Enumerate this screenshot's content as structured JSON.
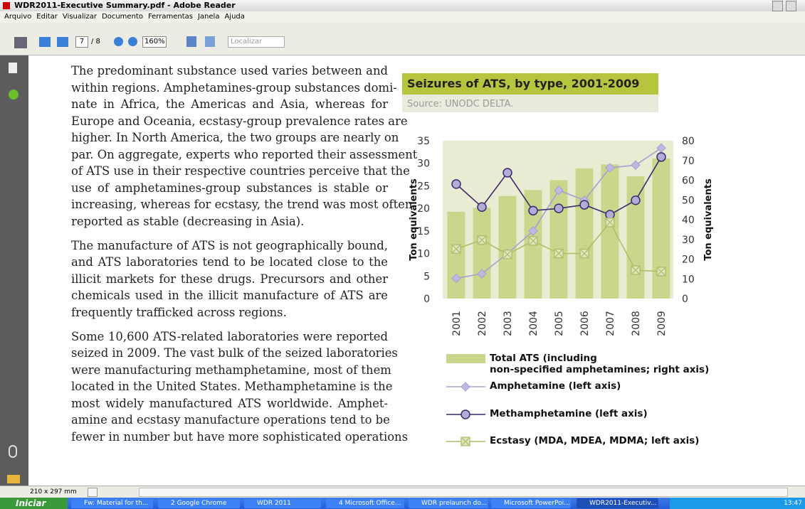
{
  "window": {
    "title": "WDR2011-Executive Summary.pdf - Adobe Reader",
    "menu": [
      "Arquivo",
      "Editar",
      "Visualizar",
      "Documento",
      "Ferramentas",
      "Janela",
      "Ajuda"
    ],
    "toolbar": {
      "page": "7",
      "page_count": "/ 8",
      "zoom": "160%",
      "search": "Localizar"
    },
    "status": "210 x 297 mm",
    "taskbar": {
      "start": "Iniciar",
      "items": [
        "Fw: Material for th...",
        "2 Google Chrome",
        "WDR 2011",
        "4 Microsoft Office...",
        "WDR prelaunch do...",
        "Microsoft PowerPoi...",
        "WDR2011-Executiv..."
      ],
      "clock": "13:47"
    }
  },
  "document": {
    "paragraphs": [
      [
        "The predominant substance used varies between and",
        "within regions. Amphetamines-group substances domi-",
        "nate in Africa, the Americas and Asia, whereas for",
        "Europe and Oceania, ecstasy-group prevalence rates are",
        "higher. In North America, the two groups are nearly on",
        "par. On aggregate, experts who reported their assessment",
        "of ATS use in their respective countries perceive that the",
        "use of amphetamines-group substances is stable or",
        "increasing, whereas for ecstasy, the trend was most often",
        "reported as stable (decreasing in Asia)."
      ],
      [
        "The manufacture of ATS is not geographically bound,",
        "and ATS laboratories tend to be located close to the",
        "illicit markets for these drugs. Precursors and other",
        "chemicals used in the illicit manufacture of ATS are",
        "frequently trafficked across regions."
      ],
      [
        "Some 10,600 ATS-related laboratories were reported",
        "seized in 2009. The vast bulk of the seized laboratories",
        "were manufacturing methamphetamine, most of them",
        "located in the United States. Methamphetamine is the",
        "most widely manufactured ATS worldwide. Amphet-",
        "amine and ecstasy manufacture operations tend to be",
        "fewer in number but have more sophisticated operations"
      ]
    ]
  },
  "chart_data": {
    "type": "bar",
    "title": "Seizures of ATS, by type, 2001-2009",
    "subtitle": "Source: UNODC DELTA.",
    "categories": [
      "2001",
      "2002",
      "2003",
      "2004",
      "2005",
      "2006",
      "2007",
      "2008",
      "2009"
    ],
    "y_label": "Ton equivalents",
    "y2_label": "Ton equivalents",
    "ylim": [
      0,
      35
    ],
    "yticks": [
      0,
      5,
      10,
      15,
      20,
      25,
      30,
      35
    ],
    "y2lim": [
      0,
      80
    ],
    "y2ticks": [
      0,
      10,
      20,
      30,
      40,
      50,
      60,
      70,
      80
    ],
    "series": [
      {
        "name": "Total ATS (including\nnon-specified amphetamines; right axis)",
        "type": "bar",
        "axis": "y2",
        "color": "#c8d78c",
        "values": [
          44,
          46,
          52,
          55,
          60,
          66,
          68,
          62,
          71
        ]
      },
      {
        "name": "Amphetamine (left axis)",
        "type": "line",
        "marker": "diamond",
        "color": "#a79ed2",
        "values": [
          4.5,
          5.5,
          10,
          15,
          24,
          21.8,
          29,
          29.6,
          33.4
        ]
      },
      {
        "name": "Methamphetamine (left axis)",
        "type": "line",
        "marker": "circle",
        "color": "#3b2a6c",
        "values": [
          25.4,
          20.3,
          27.9,
          19.5,
          20,
          20.8,
          18.6,
          21.8,
          31.4
        ]
      },
      {
        "name": "Ecstasy (MDA, MDEA, MDMA; left axis)",
        "type": "line",
        "marker": "x",
        "color": "#aebe6a",
        "values": [
          11,
          13,
          9.8,
          12.8,
          10,
          10,
          16.9,
          6.3,
          6
        ]
      }
    ]
  }
}
